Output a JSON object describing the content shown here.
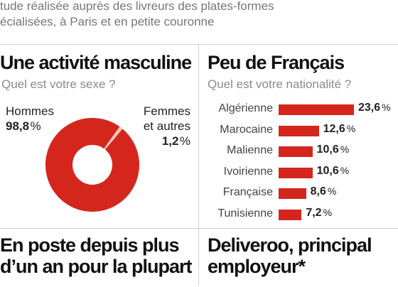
{
  "intro": {
    "line1": "tude réalisée auprès des livreurs des plates-formes",
    "line2": "écialisées, à Paris et en petite couronne"
  },
  "panel_left": {
    "title": "Une activité masculine",
    "subtitle": "Quel est votre sexe ?"
  },
  "panel_right": {
    "title": "Peu de Français",
    "subtitle": "Quel est votre nationalité ?"
  },
  "bottom_left": {
    "line1": "En poste depuis plus",
    "line2": "d’un an pour la plupart"
  },
  "bottom_right": {
    "line1": "Deliveroo, principal",
    "line2": "employeur*"
  },
  "chart_data": [
    {
      "type": "pie",
      "style": "donut",
      "categories": [
        "Hommes",
        "Femmes et autres"
      ],
      "label_lines": [
        [
          "Hommes"
        ],
        [
          "Femmes",
          "et autres"
        ]
      ],
      "values": [
        98.8,
        1.2
      ],
      "value_labels": [
        "98,8",
        "1,2"
      ],
      "unit": "%",
      "colors": [
        "#d5261e",
        "#f2c9bd"
      ],
      "title": "Une activité masculine",
      "subtitle": "Quel est votre sexe ?"
    },
    {
      "type": "bar",
      "orientation": "horizontal",
      "categories": [
        "Algérienne",
        "Marocaine",
        "Malienne",
        "Ivoirienne",
        "Française",
        "Tunisienne"
      ],
      "values": [
        23.6,
        12.6,
        10.6,
        10.6,
        8.6,
        7.2
      ],
      "value_labels": [
        "23,6",
        "12,6",
        "10,6",
        "10,6",
        "8,6",
        "7,2"
      ],
      "unit": "%",
      "color": "#d5261e",
      "title": "Peu de Français",
      "subtitle": "Quel est votre nationalité ?"
    }
  ]
}
